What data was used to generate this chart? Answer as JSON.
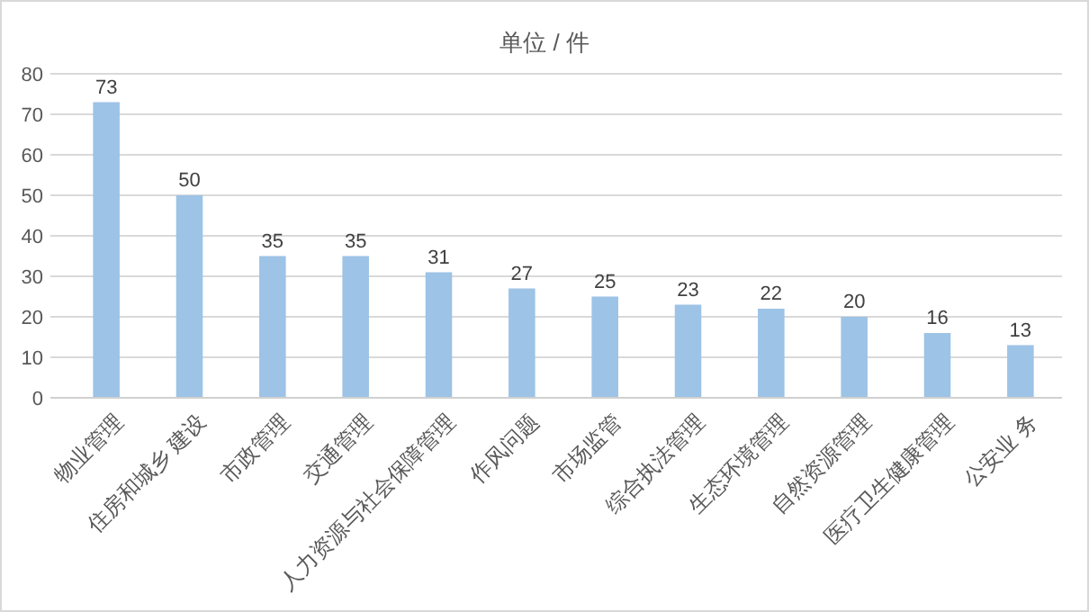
{
  "chart_data": {
    "type": "bar",
    "title": "单位 / 件",
    "categories": [
      "物业管理",
      "住房和城乡 建设",
      "市政管理",
      "交通管理",
      "人力资源与社会保障管理",
      "作风问题",
      "市场监管",
      "综合执法管理",
      "生态环境管理",
      "自然资源管理",
      "医疗卫生健康管理",
      "公安业 务"
    ],
    "values": [
      73,
      50,
      35,
      35,
      31,
      27,
      25,
      23,
      22,
      20,
      16,
      13
    ],
    "color": "#9dc3e6",
    "ylim": [
      0,
      80
    ],
    "yticks": [
      0,
      10,
      20,
      30,
      40,
      50,
      60,
      70,
      80
    ],
    "grid": "y",
    "data_labels": true
  }
}
